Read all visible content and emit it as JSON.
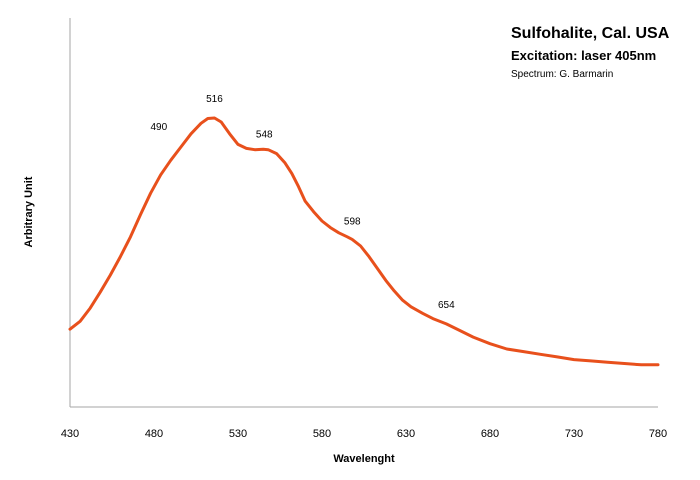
{
  "chart_data": {
    "type": "line",
    "title": "Sulfohalite, Cal. USA",
    "subtitle": "Excitation: laser 405nm",
    "credit": "Spectrum: G. Barmarin",
    "xlabel": "Wavelenght",
    "ylabel": "Arbitrary Unit",
    "xlim": [
      430,
      780
    ],
    "ylim": [
      0,
      100
    ],
    "xticks": [
      "430",
      "480",
      "530",
      "580",
      "630",
      "680",
      "730",
      "780"
    ],
    "grid": false,
    "legend": "none",
    "color": "#E8501C",
    "series": [
      {
        "x": [
          430,
          436,
          442,
          448,
          454,
          460,
          466,
          472,
          478,
          484,
          490,
          496,
          502,
          508,
          512,
          516,
          520,
          525,
          530,
          535,
          540,
          545,
          548,
          553,
          558,
          562,
          566,
          570,
          575,
          580,
          585,
          590,
          595,
          598,
          603,
          608,
          613,
          618,
          623,
          628,
          633,
          640,
          646,
          654,
          662,
          670,
          680,
          690,
          700,
          710,
          720,
          730,
          740,
          750,
          760,
          770,
          780
        ],
        "y": [
          20.0,
          23.0,
          28.0,
          34.0,
          40.5,
          47.5,
          55.0,
          63.5,
          71.5,
          78.5,
          84.0,
          89.0,
          94.0,
          98.0,
          99.8,
          100.0,
          98.5,
          94.0,
          90.0,
          88.5,
          88.0,
          88.2,
          88.0,
          86.5,
          83.0,
          79.0,
          74.0,
          68.5,
          64.5,
          61.0,
          58.5,
          56.5,
          55.0,
          54.0,
          51.5,
          47.5,
          43.0,
          38.5,
          34.5,
          31.0,
          28.5,
          26.0,
          24.0,
          22.0,
          19.5,
          17.0,
          14.5,
          12.5,
          11.5,
          10.5,
          9.5,
          8.5,
          8.0,
          7.5,
          7.0,
          6.5,
          6.5
        ]
      }
    ],
    "annotations": [
      {
        "x": 490,
        "y": 84.0,
        "text": "490"
      },
      {
        "x": 516,
        "y": 100.0,
        "text": "516"
      },
      {
        "x": 548,
        "y": 88.0,
        "text": "548"
      },
      {
        "x": 598,
        "y": 54.0,
        "text": "598"
      },
      {
        "x": 654,
        "y": 22.0,
        "text": "654"
      }
    ]
  }
}
